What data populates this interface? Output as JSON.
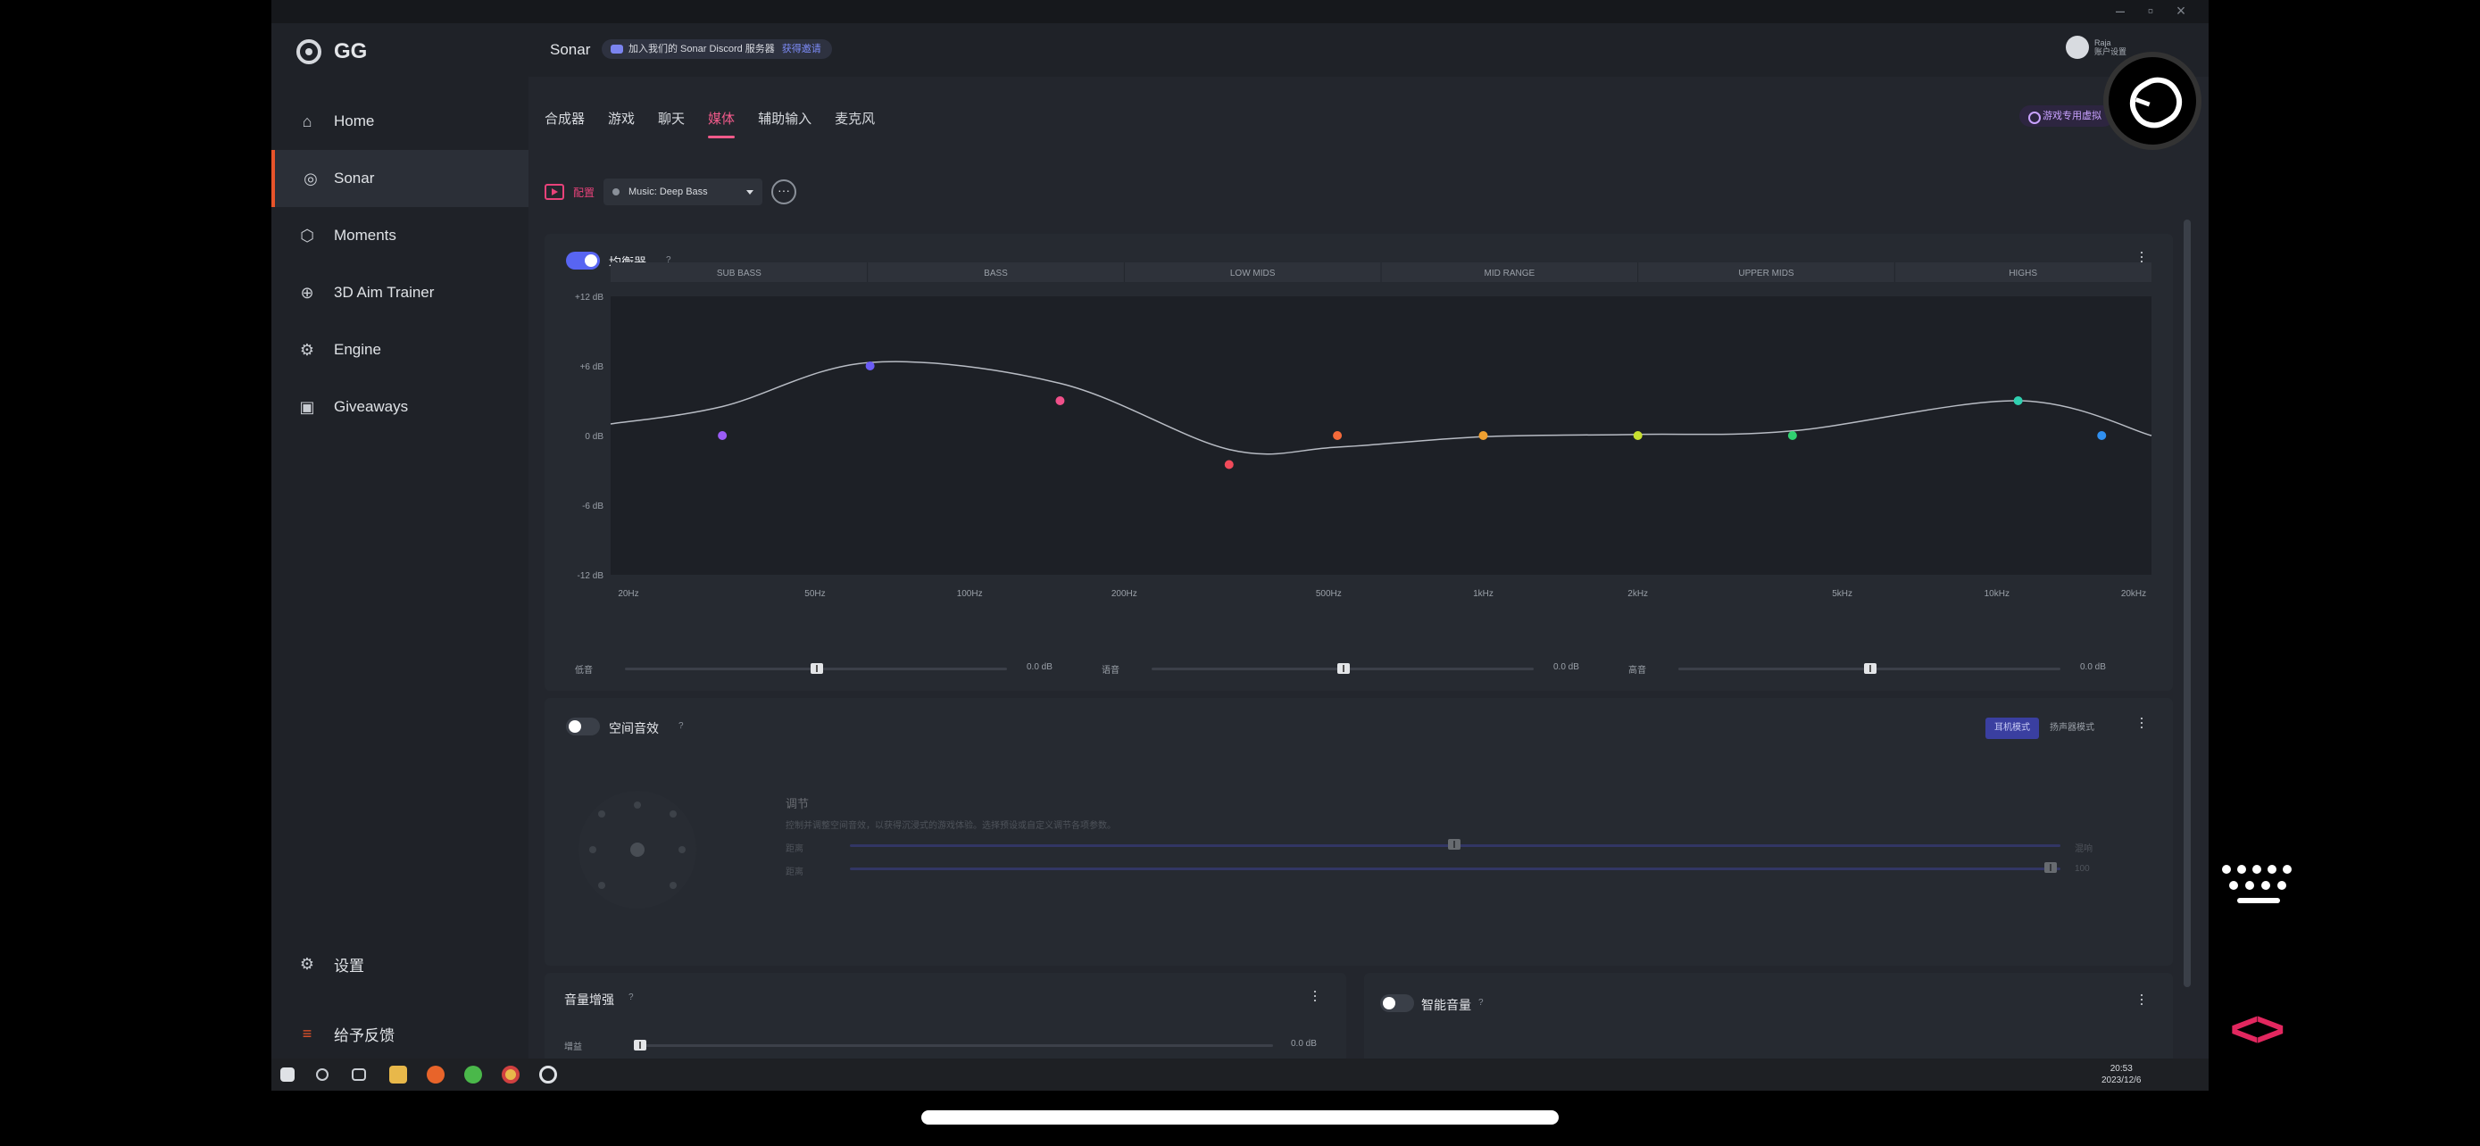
{
  "app": {
    "brand": "GG"
  },
  "sidebar": {
    "items": [
      {
        "label": "Home",
        "icon": "home-icon"
      },
      {
        "label": "Sonar",
        "icon": "sonar-icon"
      },
      {
        "label": "Moments",
        "icon": "moments-icon"
      },
      {
        "label": "3D Aim Trainer",
        "icon": "aim-trainer-icon"
      },
      {
        "label": "Engine",
        "icon": "engine-icon"
      },
      {
        "label": "Giveaways",
        "icon": "gift-icon"
      }
    ],
    "settings_label": "设置",
    "feedback_label": "给予反馈"
  },
  "topbar": {
    "title": "Sonar",
    "discord_text": "加入我们的 Sonar Discord 服务器",
    "discord_link": "获得邀请",
    "user_name": "Raja",
    "user_sub": "账户设置"
  },
  "tabs": [
    "合成器",
    "游戏",
    "聊天",
    "媒体",
    "辅助输入",
    "麦克风"
  ],
  "active_tab": "媒体",
  "game_pill": "游戏专用虚拟",
  "config": {
    "label": "配置",
    "preset": "Music: Deep Bass"
  },
  "equalizer": {
    "title": "均衡器",
    "enabled": true,
    "bands": [
      "SUB BASS",
      "BASS",
      "LOW MIDS",
      "MID RANGE",
      "UPPER MIDS",
      "HIGHS"
    ],
    "y_ticks": [
      "+12 dB",
      "+6 dB",
      "0 dB",
      "-6 dB",
      "-12 dB"
    ],
    "x_ticks": [
      "20Hz",
      "50Hz",
      "100Hz",
      "200Hz",
      "500Hz",
      "1kHz",
      "2kHz",
      "5kHz",
      "10kHz",
      "20kHz"
    ],
    "sliders": [
      {
        "label": "低音",
        "value": "0.0 dB"
      },
      {
        "label": "语音",
        "value": "0.0 dB"
      },
      {
        "label": "高音",
        "value": "0.0 dB"
      }
    ]
  },
  "chart_data": {
    "type": "line",
    "ylim": [
      -12,
      12
    ],
    "x_scale": "log",
    "xlim": [
      20,
      20000
    ],
    "points": [
      {
        "x": 33,
        "y": 0,
        "color": "#9b5cf6"
      },
      {
        "x": 64,
        "y": 6,
        "color": "#6b5cf6"
      },
      {
        "x": 150,
        "y": 3,
        "color": "#f0508a"
      },
      {
        "x": 320,
        "y": -2.5,
        "color": "#f04a5a"
      },
      {
        "x": 520,
        "y": 0,
        "color": "#f46a3a"
      },
      {
        "x": 1000,
        "y": 0,
        "color": "#f0a030"
      },
      {
        "x": 2000,
        "y": 0,
        "color": "#c8e030"
      },
      {
        "x": 4000,
        "y": 0,
        "color": "#30d070"
      },
      {
        "x": 11000,
        "y": 3,
        "color": "#30d0b0"
      },
      {
        "x": 16000,
        "y": 0,
        "color": "#3090f0"
      }
    ],
    "curve": [
      [
        20,
        1
      ],
      [
        33,
        2.5
      ],
      [
        64,
        6.3
      ],
      [
        150,
        4.5
      ],
      [
        320,
        -1.2
      ],
      [
        520,
        -1.0
      ],
      [
        1000,
        -0.1
      ],
      [
        2000,
        0.1
      ],
      [
        4000,
        0.4
      ],
      [
        11000,
        3.0
      ],
      [
        20000,
        0
      ]
    ]
  },
  "spatial": {
    "title": "空间音效",
    "enabled": false,
    "mode_a": "耳机模式",
    "mode_b": "扬声器模式",
    "tune_title": "调节",
    "desc": "控制并调整空间音效，以获得沉浸式的游戏体验。选择预设或自定义调节各项参数。",
    "row1_label": "距离",
    "row1_value": "混响",
    "row2_label": "距离",
    "row2_value": "100"
  },
  "boost": {
    "title": "音量增强",
    "slider_label": "增益",
    "value": "0.0 dB"
  },
  "smart": {
    "title": "智能音量",
    "enabled": false
  },
  "taskbar": {
    "time": "20:53",
    "date": "2023/12/6"
  }
}
